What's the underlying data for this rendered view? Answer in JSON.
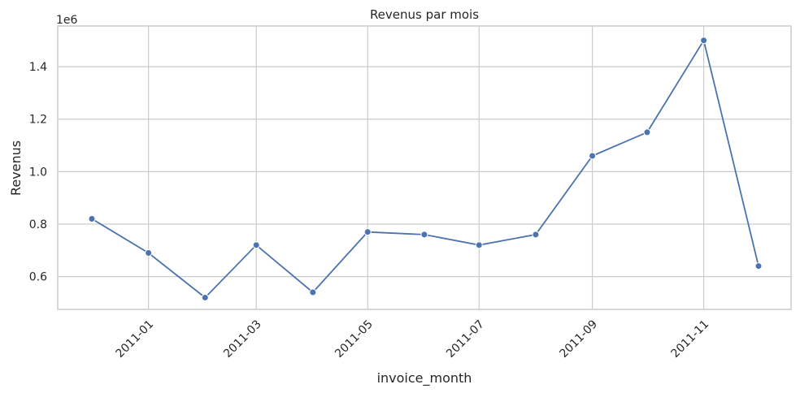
{
  "chart_data": {
    "type": "line",
    "title": "Revenus par mois",
    "xlabel": "invoice_month",
    "ylabel": "Revenus",
    "offset_label": "1e6",
    "x_tick_labels": [
      "2011-01",
      "2011-03",
      "2011-05",
      "2011-07",
      "2011-09",
      "2011-11"
    ],
    "y_tick_labels": [
      "0.6",
      "0.8",
      "1.0",
      "1.2",
      "1.4"
    ],
    "ylim": [
      0.475,
      1.555
    ],
    "grid": true,
    "legend": "none",
    "color": "#4c72b0",
    "x": [
      "2010-12-01",
      "2011-01-01",
      "2011-02-01",
      "2011-03-01",
      "2011-04-01",
      "2011-05-01",
      "2011-06-01",
      "2011-07-01",
      "2011-08-01",
      "2011-09-01",
      "2011-10-01",
      "2011-11-01",
      "2011-12-01"
    ],
    "values": [
      0.82,
      0.69,
      0.52,
      0.72,
      0.54,
      0.77,
      0.76,
      0.72,
      0.76,
      1.06,
      1.15,
      1.5,
      0.64
    ]
  }
}
